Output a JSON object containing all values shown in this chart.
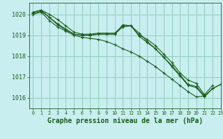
{
  "title": "Graphe pression niveau de la mer (hPa)",
  "background_color": "#c8eef0",
  "plot_background": "#c8eef0",
  "grid_color": "#90ccbb",
  "line_color": "#1a5c1a",
  "xlim": [
    -0.5,
    23
  ],
  "ylim": [
    1015.5,
    1020.55
  ],
  "yticks": [
    1016,
    1017,
    1018,
    1019,
    1020
  ],
  "xticks": [
    0,
    1,
    2,
    3,
    4,
    5,
    6,
    7,
    8,
    9,
    10,
    11,
    12,
    13,
    14,
    15,
    16,
    17,
    18,
    19,
    20,
    21,
    22,
    23
  ],
  "series": [
    [
      1020.1,
      1020.2,
      1020.0,
      1019.75,
      1019.45,
      1019.15,
      1019.05,
      1019.05,
      1019.1,
      1019.1,
      1019.1,
      1019.45,
      1019.45,
      1019.0,
      1018.8,
      1018.5,
      1018.1,
      1017.7,
      1017.2,
      1016.85,
      1016.7,
      1016.15,
      1016.6,
      null
    ],
    [
      1020.05,
      1020.15,
      1019.85,
      1019.55,
      1019.3,
      1019.05,
      1019.0,
      1019.0,
      1019.05,
      1019.05,
      1019.05,
      1019.5,
      1019.45,
      1019.1,
      1018.7,
      1018.35,
      1017.95,
      1017.55,
      1017.1,
      1016.65,
      1016.55,
      1016.1,
      1016.45,
      1016.65
    ],
    [
      1020.0,
      1020.1,
      1019.7,
      1019.4,
      1019.2,
      1019.0,
      1018.9,
      1018.85,
      1018.8,
      1018.7,
      1018.55,
      1018.35,
      1018.2,
      1018.0,
      1017.75,
      1017.5,
      1017.2,
      1016.9,
      1016.6,
      1016.3,
      1016.05,
      1016.1,
      null,
      null
    ],
    [
      1020.1,
      1020.2,
      1019.85,
      1019.5,
      1019.25,
      1019.05,
      1019.0,
      1019.0,
      1019.05,
      1019.05,
      1019.05,
      1019.4,
      1019.45,
      1018.95,
      1018.65,
      1018.35,
      1017.95,
      1017.5,
      1017.05,
      1016.6,
      1016.5,
      1016.05,
      1016.45,
      1016.65
    ]
  ],
  "ylabel_fontsize": 6,
  "xlabel_fontsize": 7,
  "xtick_fontsize": 4.8,
  "ytick_fontsize": 6
}
